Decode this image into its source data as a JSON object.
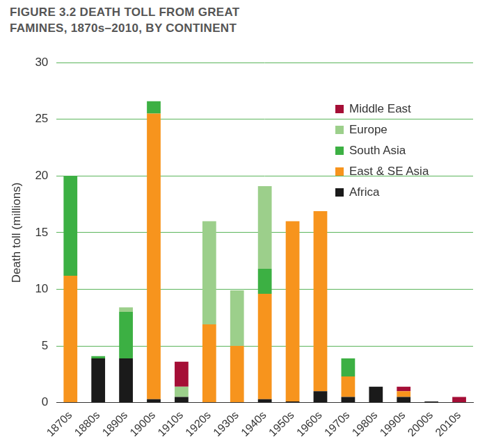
{
  "chart_data": {
    "type": "bar",
    "title": "FIGURE 3.2 DEATH TOLL FROM GREAT FAMINES, 1870s–2010, BY CONTINENT",
    "y_label": "Death toll (millions)",
    "categories": [
      "1870s",
      "1880s",
      "1890s",
      "1900s",
      "1910s",
      "1920s",
      "1930s",
      "1940s",
      "1950s",
      "1960s",
      "1970s",
      "1980s",
      "1990s",
      "2000s",
      "2010s"
    ],
    "series": [
      {
        "name": "Africa",
        "color": "#1a1a1a",
        "values": [
          0,
          3.9,
          3.9,
          0.3,
          0.5,
          0,
          0,
          0.3,
          0.1,
          1.0,
          0.5,
          1.4,
          0.5,
          0.1,
          0
        ]
      },
      {
        "name": "East & SE Asia",
        "color": "#f7941d",
        "values": [
          11.2,
          0,
          0,
          25.2,
          0,
          6.9,
          5.0,
          9.3,
          15.9,
          15.9,
          1.8,
          0,
          0.5,
          0,
          0
        ]
      },
      {
        "name": "South Asia",
        "color": "#3cb043",
        "values": [
          8.8,
          0.2,
          4.1,
          1.1,
          0,
          0,
          0,
          2.2,
          0,
          0,
          1.6,
          0,
          0,
          0,
          0
        ]
      },
      {
        "name": "Europe",
        "color": "#9ccf8b",
        "values": [
          0,
          0,
          0.4,
          0,
          0.9,
          9.1,
          4.9,
          7.3,
          0,
          0,
          0,
          0,
          0,
          0,
          0
        ]
      },
      {
        "name": "Middle East",
        "color": "#a50e36",
        "values": [
          0,
          0,
          0,
          0,
          2.2,
          0,
          0,
          0,
          0,
          0,
          0,
          0,
          0.4,
          0,
          0.5
        ]
      }
    ],
    "stacked": true,
    "ylim": [
      0,
      30
    ],
    "yticks": [
      0,
      5,
      10,
      15,
      20,
      25,
      30
    ],
    "grid": true,
    "legend": "upper right"
  }
}
